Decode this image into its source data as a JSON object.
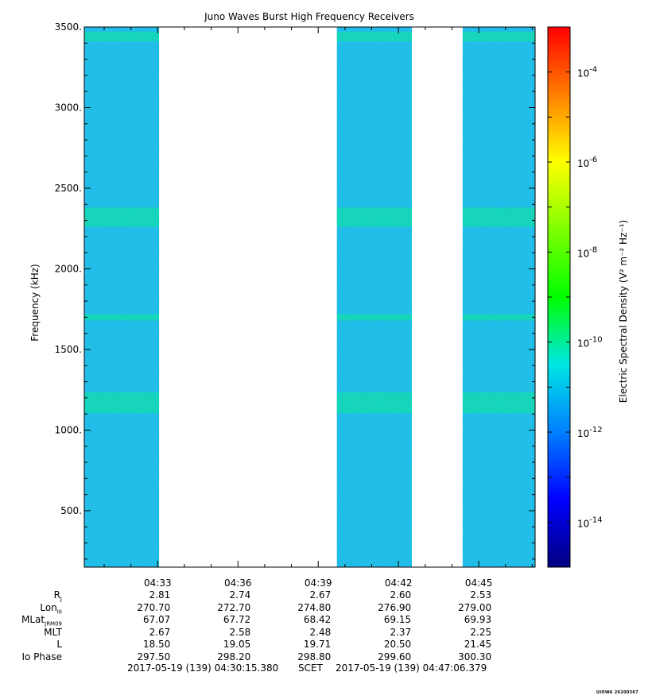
{
  "chart_data": {
    "type": "heatmap",
    "title": "Juno Waves Burst High Frequency Receivers",
    "ylabel": "Frequency (kHz)",
    "ylim": [
      150,
      3500
    ],
    "yticks": [
      500,
      1000,
      1500,
      2000,
      2500,
      3000,
      3500
    ],
    "ytick_labels": [
      "500.",
      "1000.",
      "1500.",
      "2000.",
      "2500.",
      "3000.",
      "3500."
    ],
    "x_start": "04:30:15.380",
    "x_end": "04:47:06.379",
    "xticks": [
      "04:33",
      "04:36",
      "04:39",
      "04:42",
      "04:45"
    ],
    "data_intervals": [
      {
        "start": "04:30:15",
        "end": "04:33:03"
      },
      {
        "start": "04:39:42",
        "end": "04:42:30"
      },
      {
        "start": "04:44:24",
        "end": "04:47:06"
      }
    ],
    "enhanced_bands_khz": [
      {
        "center": 3440,
        "width": 60
      },
      {
        "center": 2320,
        "width": 120
      },
      {
        "center": 1700,
        "width": 40
      },
      {
        "center": 1170,
        "width": 130
      }
    ],
    "background_level_log10": -12,
    "colorbar": {
      "label": "Electric Spectral Density (V² m⁻² Hz⁻¹)",
      "scale": "log",
      "range_log10": [
        -15,
        -3
      ],
      "ticks": [
        {
          "exp": -4,
          "label": "-4"
        },
        {
          "exp": -6,
          "label": "-6"
        },
        {
          "exp": -8,
          "label": "-8"
        },
        {
          "exp": -10,
          "label": "-10"
        },
        {
          "exp": -12,
          "label": "-12"
        },
        {
          "exp": -14,
          "label": "-14"
        }
      ],
      "colors": [
        "#00007f",
        "#0000ff",
        "#007fff",
        "#00e5e5",
        "#00ff00",
        "#7fff00",
        "#ffff00",
        "#ff7f00",
        "#ff0000"
      ]
    },
    "grid": false
  },
  "ephemeris": {
    "rows": [
      {
        "label": "R",
        "sub": "J",
        "values": [
          "2.81",
          "2.74",
          "2.67",
          "2.60",
          "2.53"
        ]
      },
      {
        "label": "Lon",
        "sub": "III",
        "values": [
          "270.70",
          "272.70",
          "274.80",
          "276.90",
          "279.00"
        ]
      },
      {
        "label": "MLat",
        "sub": "JRM09",
        "values": [
          "67.07",
          "67.72",
          "68.42",
          "69.15",
          "69.93"
        ]
      },
      {
        "label": "MLT",
        "sub": "",
        "values": [
          "2.67",
          "2.58",
          "2.48",
          "2.37",
          "2.25"
        ]
      },
      {
        "label": "L",
        "sub": "",
        "values": [
          "18.50",
          "19.05",
          "19.71",
          "20.50",
          "21.45"
        ]
      },
      {
        "label": "Io Phase",
        "sub": "",
        "values": [
          "297.50",
          "298.20",
          "298.80",
          "299.60",
          "300.30"
        ]
      }
    ]
  },
  "footer": {
    "start": "2017-05-19 (139) 04:30:15.380",
    "scet": "SCET",
    "end": "2017-05-19 (139) 04:47:06.379"
  },
  "badge": "UIOWA 20200307"
}
